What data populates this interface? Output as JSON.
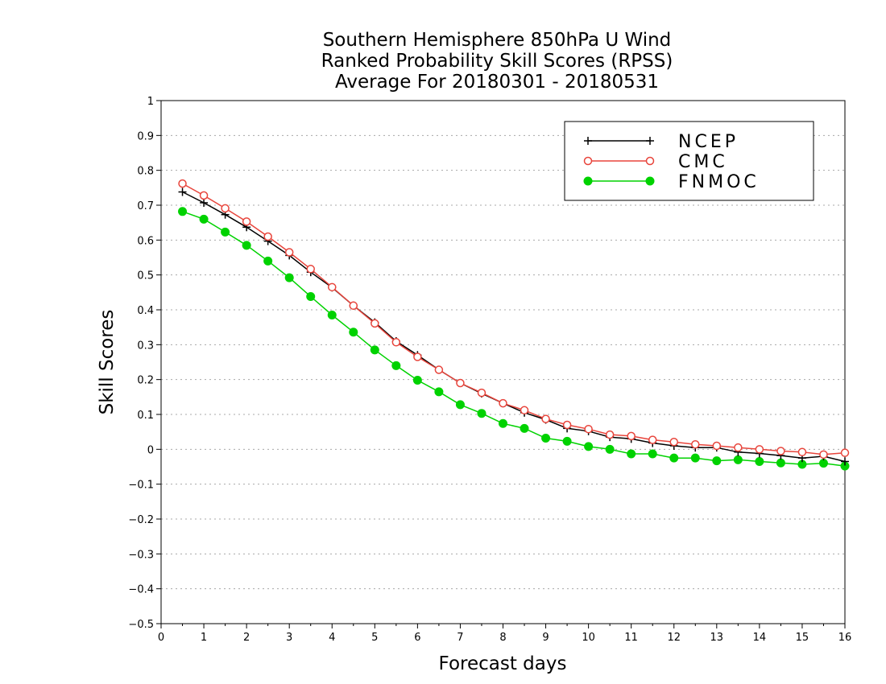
{
  "chart_data": {
    "type": "line",
    "title": [
      "Southern Hemisphere 850hPa U Wind",
      "Ranked Probability Skill Scores (RPSS)",
      "Average For 20180301 - 20180531"
    ],
    "xlabel": "Forecast days",
    "ylabel": "Skill Scores",
    "xlim": [
      0,
      16
    ],
    "ylim": [
      -0.5,
      1
    ],
    "xticks": [
      "0",
      "1",
      "2",
      "3",
      "4",
      "5",
      "6",
      "7",
      "8",
      "9",
      "10",
      "11",
      "12",
      "13",
      "14",
      "15",
      "16"
    ],
    "yticks": [
      "−0.5",
      "−0.4",
      "−0.3",
      "−0.2",
      "−0.1",
      "0",
      "0.1",
      "0.2",
      "0.3",
      "0.4",
      "0.5",
      "0.6",
      "0.7",
      "0.8",
      "0.9",
      "1"
    ],
    "grid": "dotted horizontal",
    "legend_position": "top-right",
    "x": [
      0.5,
      1,
      1.5,
      2,
      2.5,
      3,
      3.5,
      4,
      4.5,
      5,
      5.5,
      6,
      6.5,
      7,
      7.5,
      8,
      8.5,
      9,
      9.5,
      10,
      10.5,
      11,
      11.5,
      12,
      12.5,
      13,
      13.5,
      14,
      14.5,
      15,
      15.5,
      16
    ],
    "series": [
      {
        "name": "NCEP",
        "color": "#000000",
        "marker": "plus",
        "values": [
          0.738,
          0.707,
          0.673,
          0.637,
          0.597,
          0.556,
          0.508,
          0.464,
          0.412,
          0.364,
          0.31,
          0.27,
          0.228,
          0.19,
          0.16,
          0.132,
          0.105,
          0.085,
          0.06,
          0.052,
          0.035,
          0.03,
          0.018,
          0.01,
          0.005,
          0.005,
          -0.008,
          -0.012,
          -0.018,
          -0.025,
          -0.02,
          -0.035
        ]
      },
      {
        "name": "CMC",
        "color": "#e8453c",
        "marker": "open-circle",
        "values": [
          0.762,
          0.728,
          0.691,
          0.653,
          0.61,
          0.565,
          0.517,
          0.465,
          0.412,
          0.361,
          0.307,
          0.265,
          0.228,
          0.19,
          0.162,
          0.132,
          0.112,
          0.087,
          0.07,
          0.058,
          0.042,
          0.038,
          0.027,
          0.021,
          0.014,
          0.01,
          0.005,
          0.0,
          -0.005,
          -0.008,
          -0.015,
          -0.01
        ]
      },
      {
        "name": "FNMOC",
        "color": "#00d200",
        "marker": "filled-circle",
        "values": [
          0.682,
          0.66,
          0.623,
          0.585,
          0.54,
          0.492,
          0.438,
          0.385,
          0.336,
          0.285,
          0.24,
          0.198,
          0.165,
          0.128,
          0.103,
          0.074,
          0.06,
          0.032,
          0.023,
          0.008,
          0.0,
          -0.013,
          -0.013,
          -0.025,
          -0.025,
          -0.033,
          -0.03,
          -0.035,
          -0.039,
          -0.043,
          -0.04,
          -0.048
        ]
      }
    ]
  }
}
